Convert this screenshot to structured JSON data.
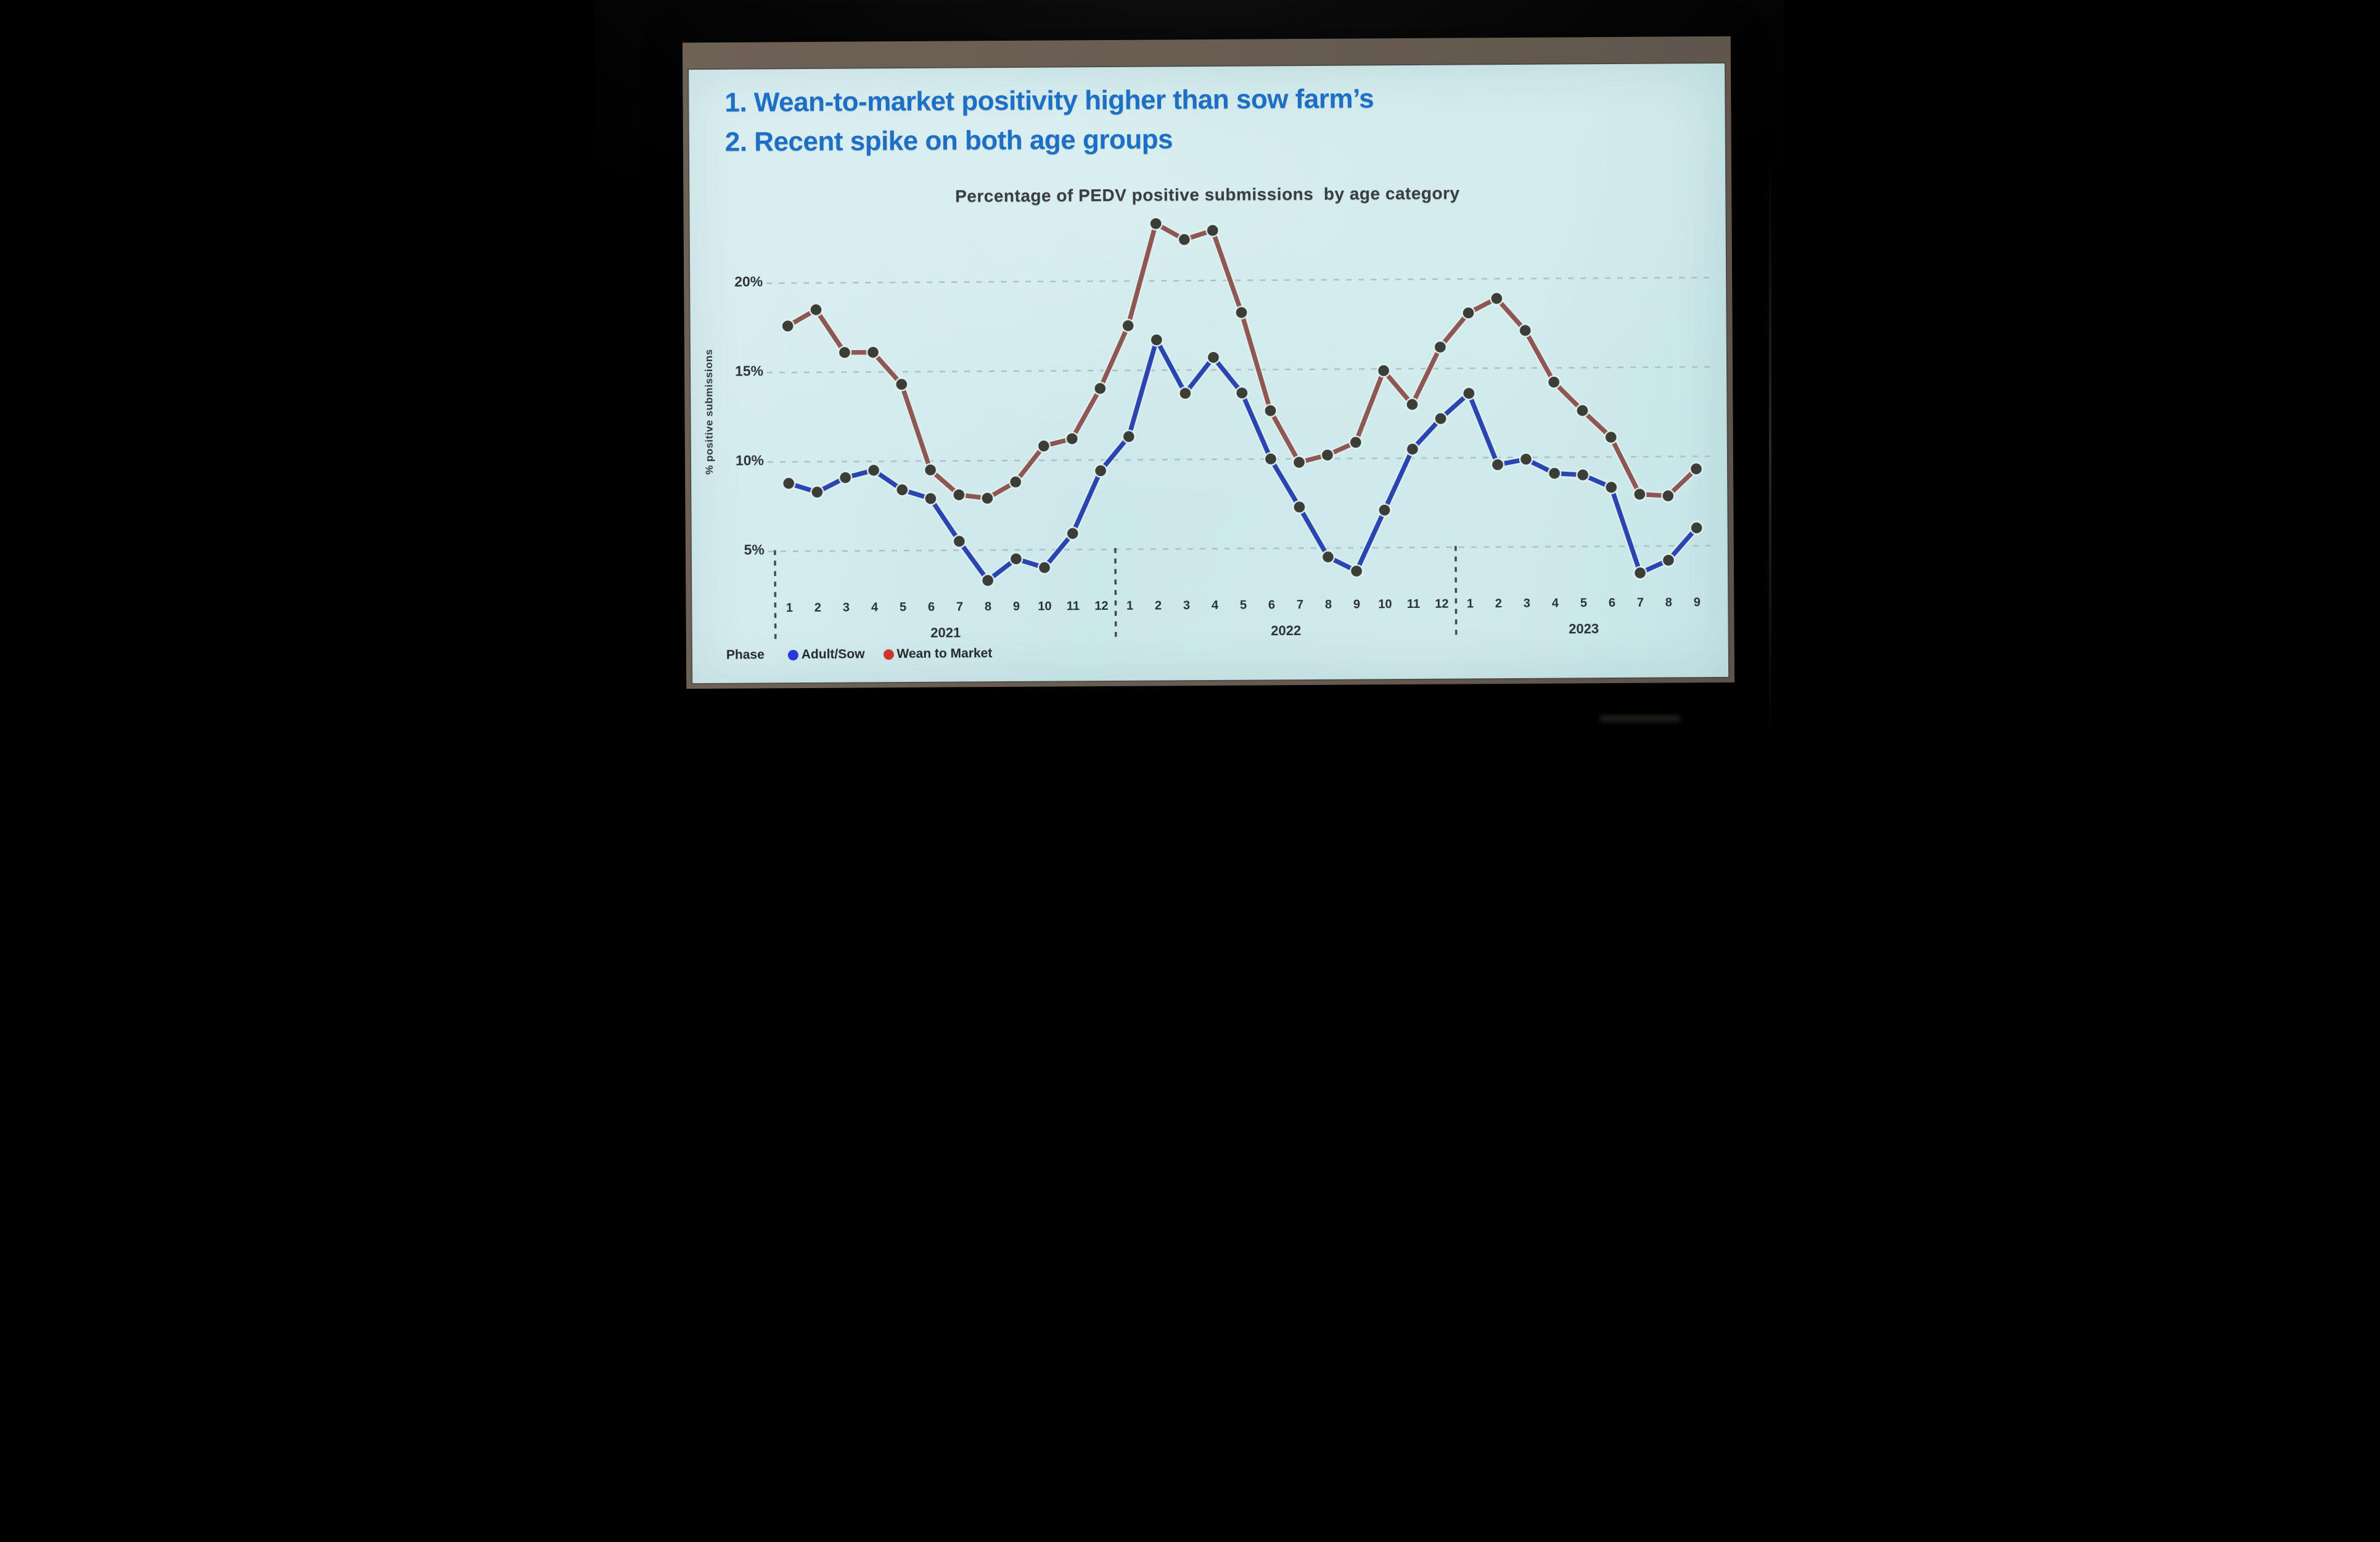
{
  "slide": {
    "headline": [
      "1. Wean-to-market positivity higher than sow farm’s",
      "2. Recent spike on both age groups"
    ],
    "headline_color": "#1d6ec5"
  },
  "chart_data": {
    "type": "line",
    "title": "Percentage of PEDV positive submissions  by age category",
    "ylabel": "% positive submissions",
    "ylim": [
      0,
      25
    ],
    "grid": "dashed horizontal gridlines",
    "y_gridlines": [
      5,
      10,
      15,
      20
    ],
    "y_tick_labels": [
      "5%",
      "10%",
      "15%",
      "20%"
    ],
    "x_years": [
      {
        "label": "2021",
        "n_months": 12
      },
      {
        "label": "2022",
        "n_months": 12
      },
      {
        "label": "2023",
        "n_months": 9
      }
    ],
    "x_month_labels": [
      "1",
      "2",
      "3",
      "4",
      "5",
      "6",
      "7",
      "8",
      "9",
      "10",
      "11",
      "12",
      "1",
      "2",
      "3",
      "4",
      "5",
      "6",
      "7",
      "8",
      "9",
      "10",
      "11",
      "12",
      "1",
      "2",
      "3",
      "4",
      "5",
      "6",
      "7",
      "8",
      "9"
    ],
    "series": [
      {
        "name": "Adult/Sow",
        "line_color": "#2a45b0",
        "legend_dot_color": "#2638d8",
        "marker_color": "#3a3e37",
        "values": [
          8.8,
          8.3,
          9.1,
          9.5,
          8.4,
          7.9,
          5.5,
          3.3,
          4.5,
          4.0,
          5.9,
          9.4,
          11.3,
          16.7,
          13.7,
          15.7,
          13.7,
          10.0,
          7.3,
          4.5,
          3.7,
          7.1,
          10.5,
          12.2,
          13.6,
          9.6,
          9.9,
          9.1,
          9.0,
          8.3,
          3.5,
          4.2,
          6.0
        ]
      },
      {
        "name": "Wean to Market",
        "line_color": "#8e5751",
        "legend_dot_color": "#d2342b",
        "marker_color": "#3a3e37",
        "values": [
          17.6,
          18.5,
          16.1,
          16.1,
          14.3,
          9.5,
          8.1,
          7.9,
          8.8,
          10.8,
          11.2,
          14.0,
          17.5,
          23.2,
          22.3,
          22.8,
          18.2,
          12.7,
          9.8,
          10.2,
          10.9,
          14.9,
          13.0,
          16.2,
          18.1,
          18.9,
          17.1,
          14.2,
          12.6,
          11.1,
          7.9,
          7.8,
          9.3
        ]
      }
    ],
    "legend": {
      "phase_label": "Phase",
      "position": "bottom-left"
    }
  }
}
